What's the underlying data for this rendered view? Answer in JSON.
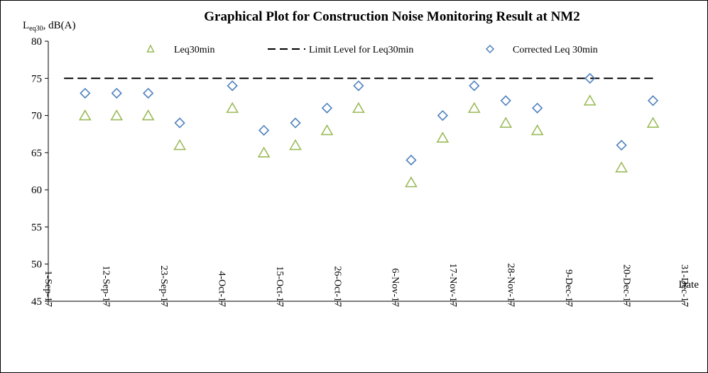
{
  "chart_data": {
    "type": "scatter",
    "title": "Graphical Plot for Construction Noise Monitoring Result at NM2",
    "ylabel": {
      "main": "L",
      "sub": "eq30",
      "rest": ", dB(A)"
    },
    "xlabel": "Date",
    "ylim": [
      45,
      80
    ],
    "yticks": [
      45,
      50,
      55,
      60,
      65,
      70,
      75,
      80
    ],
    "xlim": [
      "2017-09-01",
      "2017-12-31"
    ],
    "xtick_dates": [
      "2017-09-01",
      "2017-09-12",
      "2017-09-23",
      "2017-10-04",
      "2017-10-15",
      "2017-10-26",
      "2017-11-06",
      "2017-11-17",
      "2017-11-28",
      "2017-12-09",
      "2017-12-20",
      "2017-12-31"
    ],
    "xtick_labels": [
      "1-Sep-17",
      "12-Sep-17",
      "23-Sep-17",
      "4-Oct-17",
      "15-Oct-17",
      "26-Oct-17",
      "6-Nov-17",
      "17-Nov-17",
      "28-Nov-17",
      "9-Dec-17",
      "20-Dec-17",
      "31-Dec-17"
    ],
    "grid": false,
    "legend_position": "top",
    "x": [
      "2017-09-08",
      "2017-09-14",
      "2017-09-20",
      "2017-09-26",
      "2017-10-06",
      "2017-10-12",
      "2017-10-18",
      "2017-10-24",
      "2017-10-30",
      "2017-11-09",
      "2017-11-15",
      "2017-11-21",
      "2017-11-27",
      "2017-12-03",
      "2017-12-13",
      "2017-12-19",
      "2017-12-25"
    ],
    "series": [
      {
        "name": "Leq30min",
        "marker": "triangle",
        "color": "#9bbb59",
        "values": [
          70,
          70,
          70,
          66,
          71,
          65,
          66,
          68,
          71,
          61,
          67,
          71,
          69,
          68,
          72,
          63,
          69
        ]
      },
      {
        "name": "Limit Level for Leq30min",
        "marker": "dashed-line",
        "color": "#000000",
        "x": [
          "2017-09-04",
          "2017-12-25"
        ],
        "values": [
          75,
          75
        ]
      },
      {
        "name": "Corrected Leq 30min",
        "marker": "diamond",
        "color": "#4f81bd",
        "values": [
          73,
          73,
          73,
          69,
          74,
          68,
          69,
          71,
          74,
          64,
          70,
          74,
          72,
          71,
          75,
          66,
          72
        ]
      }
    ]
  }
}
